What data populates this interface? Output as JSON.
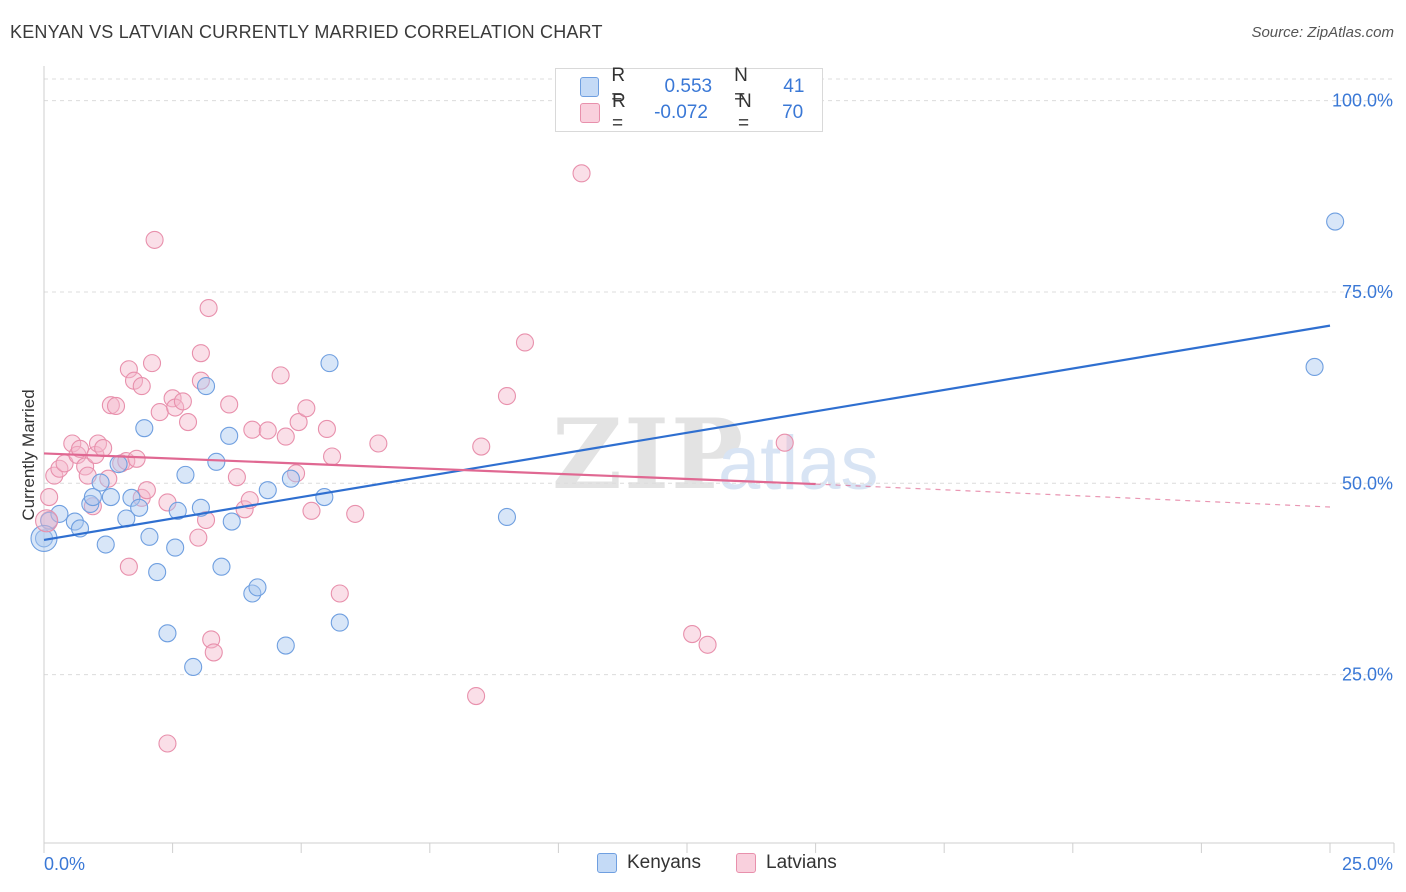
{
  "header": {
    "title": "KENYAN VS LATVIAN CURRENTLY MARRIED CORRELATION CHART",
    "source": "Source: ZipAtlas.com"
  },
  "watermark": {
    "zip": "ZIP",
    "atlas": "atlas"
  },
  "legend": {
    "rows": [
      {
        "r_label": "R =",
        "r_value": "0.553",
        "n_label": "N =",
        "n_value": "41",
        "color": "#a8c8f0"
      },
      {
        "r_label": "R =",
        "r_value": "-0.072",
        "n_label": "N =",
        "n_value": "70",
        "color": "#f4b8cb"
      }
    ]
  },
  "bottom_legend": {
    "kenyans": "Kenyans",
    "latvians": "Latvians"
  },
  "chart_data": {
    "type": "scatter",
    "title": "KENYAN VS LATVIAN CURRENTLY MARRIED CORRELATION CHART",
    "xlabel": "",
    "ylabel": "Currently Married",
    "xlim": [
      0,
      25
    ],
    "ylim": [
      3,
      104
    ],
    "x_tick_labels": [
      "0.0%",
      "25.0%"
    ],
    "y_ticks": [
      25,
      50,
      75,
      100
    ],
    "y_tick_labels": [
      "25.0%",
      "50.0%",
      "75.0%",
      "100.0%"
    ],
    "grid": true,
    "legend_position": "top-center",
    "series": [
      {
        "name": "Kenyans",
        "color": "#6f9fe0",
        "fill": "#a8c8f0",
        "trend": {
          "x": [
            0,
            25
          ],
          "y": [
            42.6,
            70.6
          ],
          "style": "solid",
          "color": "#2f6fd0"
        },
        "points": [
          {
            "x": 0.0,
            "y": 42.8
          },
          {
            "x": 0.1,
            "y": 45.1
          },
          {
            "x": 0.3,
            "y": 46.0
          },
          {
            "x": 0.6,
            "y": 45.0
          },
          {
            "x": 0.7,
            "y": 44.1
          },
          {
            "x": 0.9,
            "y": 47.3
          },
          {
            "x": 0.95,
            "y": 48.2
          },
          {
            "x": 1.1,
            "y": 50.1
          },
          {
            "x": 1.2,
            "y": 42.0
          },
          {
            "x": 1.3,
            "y": 48.2
          },
          {
            "x": 1.45,
            "y": 52.5
          },
          {
            "x": 1.6,
            "y": 45.4
          },
          {
            "x": 1.7,
            "y": 48.1
          },
          {
            "x": 1.85,
            "y": 46.8
          },
          {
            "x": 1.95,
            "y": 57.2
          },
          {
            "x": 2.05,
            "y": 43.0
          },
          {
            "x": 2.2,
            "y": 38.4
          },
          {
            "x": 2.4,
            "y": 30.4
          },
          {
            "x": 2.55,
            "y": 41.6
          },
          {
            "x": 2.6,
            "y": 46.4
          },
          {
            "x": 2.75,
            "y": 51.1
          },
          {
            "x": 2.9,
            "y": 26.0
          },
          {
            "x": 3.05,
            "y": 46.8
          },
          {
            "x": 3.15,
            "y": 62.7
          },
          {
            "x": 3.35,
            "y": 52.8
          },
          {
            "x": 3.45,
            "y": 39.1
          },
          {
            "x": 3.6,
            "y": 56.2
          },
          {
            "x": 3.65,
            "y": 45.0
          },
          {
            "x": 4.05,
            "y": 35.6
          },
          {
            "x": 4.15,
            "y": 36.4
          },
          {
            "x": 4.35,
            "y": 49.1
          },
          {
            "x": 4.7,
            "y": 28.8
          },
          {
            "x": 4.8,
            "y": 50.6
          },
          {
            "x": 5.45,
            "y": 48.2
          },
          {
            "x": 5.55,
            "y": 65.7
          },
          {
            "x": 5.75,
            "y": 31.8
          },
          {
            "x": 9.0,
            "y": 45.6
          },
          {
            "x": 24.7,
            "y": 65.2
          },
          {
            "x": 25.1,
            "y": 84.2
          }
        ]
      },
      {
        "name": "Latvians",
        "color": "#e890ac",
        "fill": "#f4b8cb",
        "trend": {
          "x": [
            0,
            15
          ],
          "y": [
            53.9,
            49.9
          ],
          "style": "solid",
          "color": "#e06892",
          "extension": {
            "x": [
              15,
              25
            ],
            "y": [
              49.9,
              46.9
            ],
            "style": "dashed"
          }
        },
        "points": [
          {
            "x": 0.1,
            "y": 48.2
          },
          {
            "x": 0.1,
            "y": 45.2
          },
          {
            "x": 0.2,
            "y": 51.0
          },
          {
            "x": 0.3,
            "y": 51.9
          },
          {
            "x": 0.4,
            "y": 52.6
          },
          {
            "x": 0.55,
            "y": 55.2
          },
          {
            "x": 0.65,
            "y": 53.7
          },
          {
            "x": 0.7,
            "y": 54.5
          },
          {
            "x": 0.8,
            "y": 52.2
          },
          {
            "x": 0.85,
            "y": 51.0
          },
          {
            "x": 0.95,
            "y": 47.0
          },
          {
            "x": 1.0,
            "y": 53.7
          },
          {
            "x": 1.05,
            "y": 55.2
          },
          {
            "x": 1.15,
            "y": 54.6
          },
          {
            "x": 1.25,
            "y": 50.6
          },
          {
            "x": 1.3,
            "y": 60.2
          },
          {
            "x": 1.4,
            "y": 60.1
          },
          {
            "x": 1.5,
            "y": 52.6
          },
          {
            "x": 1.6,
            "y": 52.9
          },
          {
            "x": 1.65,
            "y": 39.1
          },
          {
            "x": 1.65,
            "y": 64.9
          },
          {
            "x": 1.75,
            "y": 63.4
          },
          {
            "x": 1.8,
            "y": 53.2
          },
          {
            "x": 1.9,
            "y": 48.1
          },
          {
            "x": 1.9,
            "y": 62.7
          },
          {
            "x": 2.0,
            "y": 49.1
          },
          {
            "x": 2.1,
            "y": 65.7
          },
          {
            "x": 2.15,
            "y": 81.8
          },
          {
            "x": 2.25,
            "y": 59.3
          },
          {
            "x": 2.4,
            "y": 47.5
          },
          {
            "x": 2.4,
            "y": 16.0
          },
          {
            "x": 2.5,
            "y": 61.1
          },
          {
            "x": 2.55,
            "y": 59.9
          },
          {
            "x": 2.7,
            "y": 60.7
          },
          {
            "x": 2.8,
            "y": 58.0
          },
          {
            "x": 3.0,
            "y": 42.9
          },
          {
            "x": 3.05,
            "y": 63.4
          },
          {
            "x": 3.05,
            "y": 67.0
          },
          {
            "x": 3.15,
            "y": 45.2
          },
          {
            "x": 3.2,
            "y": 72.9
          },
          {
            "x": 3.25,
            "y": 29.6
          },
          {
            "x": 3.3,
            "y": 27.9
          },
          {
            "x": 3.6,
            "y": 60.3
          },
          {
            "x": 3.75,
            "y": 50.8
          },
          {
            "x": 3.9,
            "y": 46.6
          },
          {
            "x": 4.0,
            "y": 47.8
          },
          {
            "x": 4.05,
            "y": 57.0
          },
          {
            "x": 4.35,
            "y": 56.9
          },
          {
            "x": 4.6,
            "y": 64.1
          },
          {
            "x": 4.7,
            "y": 56.1
          },
          {
            "x": 4.9,
            "y": 51.3
          },
          {
            "x": 4.95,
            "y": 58.0
          },
          {
            "x": 5.1,
            "y": 59.8
          },
          {
            "x": 5.2,
            "y": 46.4
          },
          {
            "x": 5.5,
            "y": 57.1
          },
          {
            "x": 5.6,
            "y": 53.5
          },
          {
            "x": 5.75,
            "y": 35.6
          },
          {
            "x": 6.05,
            "y": 46.0
          },
          {
            "x": 6.5,
            "y": 55.2
          },
          {
            "x": 8.4,
            "y": 22.2
          },
          {
            "x": 8.5,
            "y": 54.8
          },
          {
            "x": 9.0,
            "y": 61.4
          },
          {
            "x": 9.35,
            "y": 68.4
          },
          {
            "x": 10.45,
            "y": 90.5
          },
          {
            "x": 12.6,
            "y": 30.3
          },
          {
            "x": 12.9,
            "y": 28.9
          },
          {
            "x": 14.4,
            "y": 55.3
          }
        ]
      }
    ]
  }
}
